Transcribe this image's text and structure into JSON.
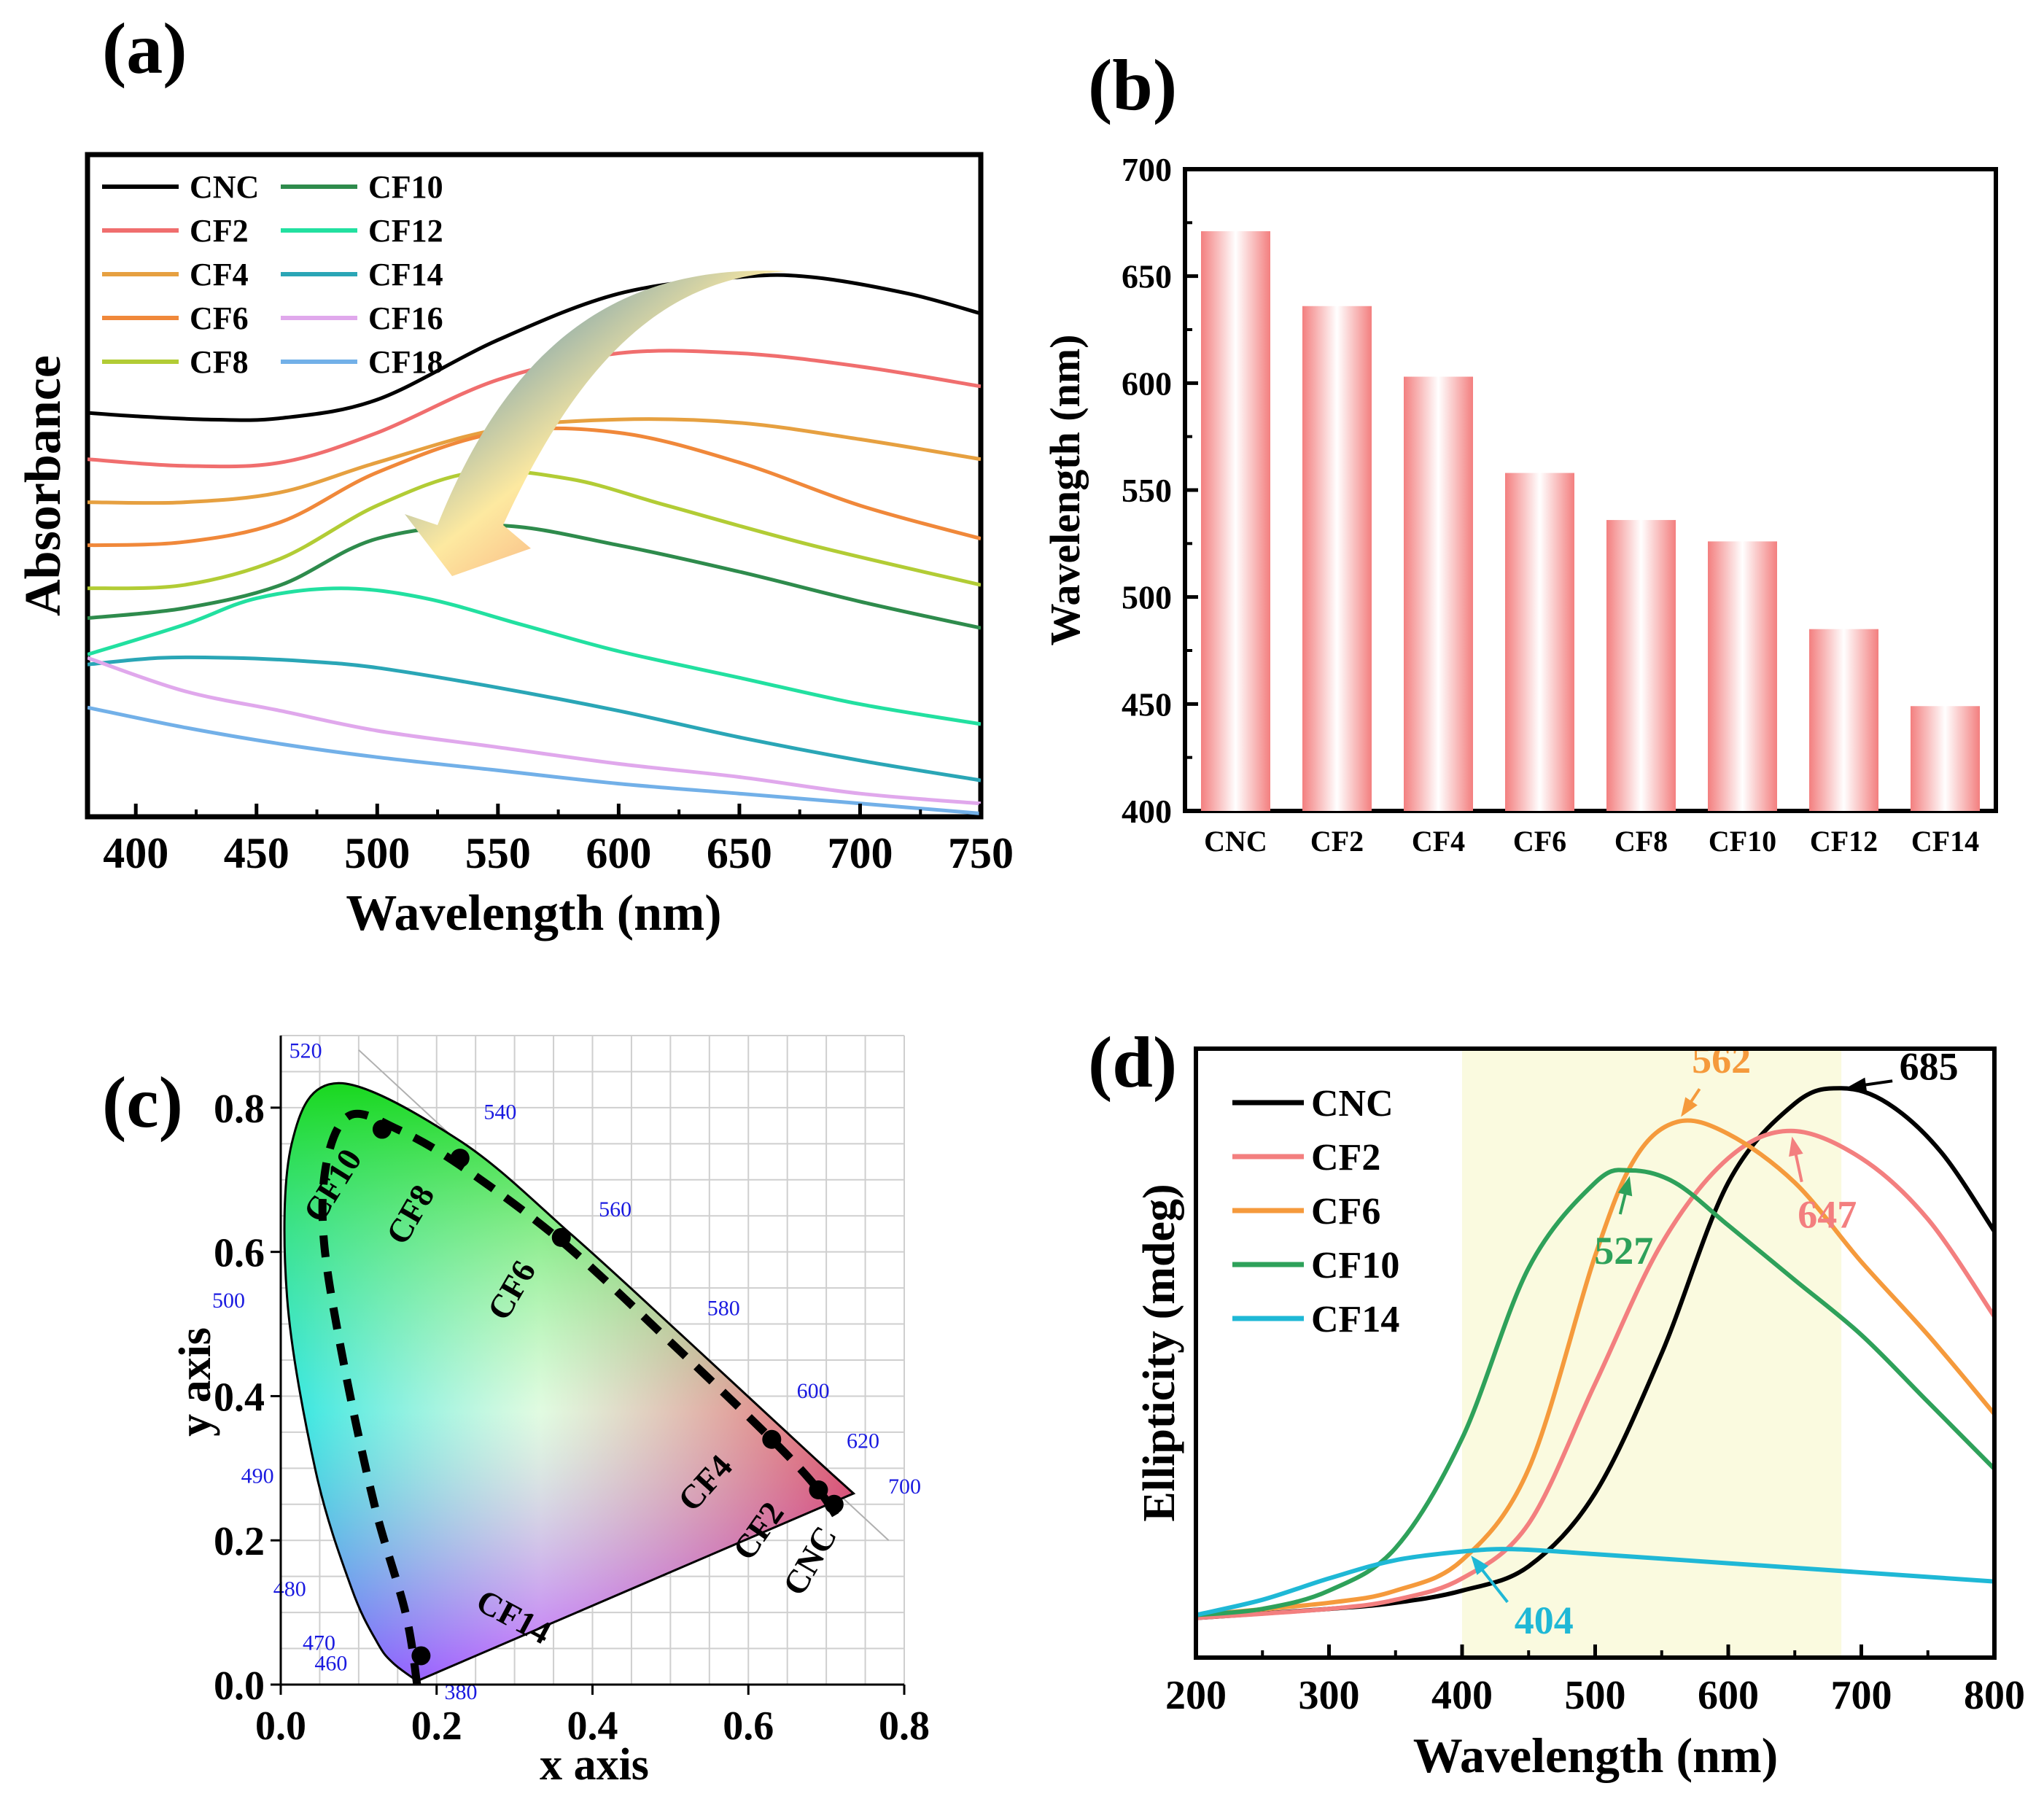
{
  "panels": {
    "a": {
      "label": "(a)",
      "chart_data": {
        "type": "line",
        "title": "",
        "xlabel": "Wavelength (nm)",
        "ylabel": "Absorbance",
        "xlim": [
          380,
          750
        ],
        "ylim": [
          0,
          1
        ],
        "xticks": [
          400,
          450,
          500,
          550,
          600,
          650,
          700,
          750
        ],
        "yticks": [],
        "legend_position": "top-left",
        "series": [
          {
            "name": "CNC",
            "color": "#000000",
            "x": [
              380,
              400,
              430,
              460,
              500,
              550,
              600,
              650,
              680,
              720,
              750
            ],
            "y": [
              0.61,
              0.605,
              0.6,
              0.602,
              0.63,
              0.72,
              0.79,
              0.815,
              0.815,
              0.79,
              0.76
            ]
          },
          {
            "name": "CF2",
            "color": "#f06e6e",
            "x": [
              380,
              420,
              460,
              500,
              550,
              600,
              650,
              700,
              750
            ],
            "y": [
              0.54,
              0.53,
              0.535,
              0.58,
              0.66,
              0.7,
              0.7,
              0.68,
              0.65
            ]
          },
          {
            "name": "CF4",
            "color": "#e6a040",
            "x": [
              380,
              420,
              460,
              500,
              550,
              600,
              650,
              700,
              750
            ],
            "y": [
              0.475,
              0.475,
              0.49,
              0.535,
              0.585,
              0.6,
              0.595,
              0.57,
              0.54
            ]
          },
          {
            "name": "CF6",
            "color": "#f0883a",
            "x": [
              380,
              420,
              460,
              500,
              550,
              600,
              650,
              700,
              750
            ],
            "y": [
              0.41,
              0.415,
              0.445,
              0.52,
              0.58,
              0.58,
              0.535,
              0.47,
              0.42
            ]
          },
          {
            "name": "CF8",
            "color": "#b2cc35",
            "x": [
              380,
              420,
              460,
              500,
              540,
              580,
              620,
              680,
              750
            ],
            "y": [
              0.345,
              0.35,
              0.39,
              0.47,
              0.52,
              0.51,
              0.47,
              0.41,
              0.35
            ]
          },
          {
            "name": "CF10",
            "color": "#2e8b4c",
            "x": [
              380,
              420,
              460,
              500,
              550,
              600,
              650,
              700,
              750
            ],
            "y": [
              0.3,
              0.315,
              0.35,
              0.42,
              0.44,
              0.41,
              0.37,
              0.325,
              0.285
            ]
          },
          {
            "name": "CF12",
            "color": "#22e0a0",
            "x": [
              380,
              420,
              450,
              485,
              520,
              560,
              600,
              650,
              700,
              750
            ],
            "y": [
              0.245,
              0.29,
              0.33,
              0.345,
              0.33,
              0.29,
              0.25,
              0.21,
              0.17,
              0.14
            ]
          },
          {
            "name": "CF14",
            "color": "#2aa6b6",
            "x": [
              380,
              410,
              440,
              470,
              500,
              550,
              600,
              650,
              700,
              750
            ],
            "y": [
              0.23,
              0.24,
              0.24,
              0.235,
              0.225,
              0.195,
              0.16,
              0.12,
              0.085,
              0.055
            ]
          },
          {
            "name": "CF16",
            "color": "#e0a8ec",
            "x": [
              380,
              420,
              460,
              500,
              550,
              600,
              650,
              700,
              750
            ],
            "y": [
              0.24,
              0.19,
              0.16,
              0.13,
              0.105,
              0.08,
              0.06,
              0.035,
              0.02
            ]
          },
          {
            "name": "CF18",
            "color": "#72b0e8",
            "x": [
              380,
              420,
              460,
              500,
              550,
              600,
              650,
              700,
              750
            ],
            "y": [
              0.165,
              0.135,
              0.11,
              0.09,
              0.07,
              0.05,
              0.035,
              0.02,
              0.005
            ]
          }
        ]
      }
    },
    "b": {
      "label": "(b)",
      "chart_data": {
        "type": "bar",
        "title": "",
        "xlabel": "",
        "ylabel": "Wavelength (nm)",
        "ylim": [
          400,
          700
        ],
        "yticks": [
          400,
          450,
          500,
          550,
          600,
          650,
          700
        ],
        "categories": [
          "CNC",
          "CF2",
          "CF4",
          "CF6",
          "CF8",
          "CF10",
          "CF12",
          "CF14"
        ],
        "values": [
          671,
          636,
          603,
          558,
          536,
          526,
          485,
          449
        ],
        "bar_color": "#f37f7f"
      }
    },
    "c": {
      "label": "(c)",
      "chart_data": {
        "type": "scatter",
        "title": "",
        "xlabel": "x axis",
        "ylabel": "y axis",
        "xlim": [
          0.0,
          0.8
        ],
        "ylim": [
          0.0,
          0.9
        ],
        "xticks": [
          0.0,
          0.2,
          0.4,
          0.6,
          0.8
        ],
        "xtick_labels": [
          "0.0",
          "0.2",
          "0.4",
          "0.6",
          "0.8"
        ],
        "yticks": [
          0.0,
          0.2,
          0.4,
          0.6,
          0.8
        ],
        "ytick_labels": [
          "0.0",
          "0.2",
          "0.4",
          "0.6",
          "0.8"
        ],
        "spectral_locus": [
          {
            "wl": 460,
            "x": 0.144,
            "y": 0.03
          },
          {
            "wl": 470,
            "x": 0.124,
            "y": 0.058
          },
          {
            "wl": 480,
            "x": 0.091,
            "y": 0.133
          },
          {
            "wl": 490,
            "x": 0.045,
            "y": 0.295
          },
          {
            "wl": 500,
            "x": 0.008,
            "y": 0.538
          },
          {
            "wl": 510,
            "x": 0.014,
            "y": 0.75
          },
          {
            "wl": 520,
            "x": 0.074,
            "y": 0.834
          },
          {
            "wl": 540,
            "x": 0.23,
            "y": 0.754
          },
          {
            "wl": 560,
            "x": 0.373,
            "y": 0.624
          },
          {
            "wl": 580,
            "x": 0.512,
            "y": 0.487
          },
          {
            "wl": 600,
            "x": 0.627,
            "y": 0.372
          },
          {
            "wl": 620,
            "x": 0.691,
            "y": 0.308
          },
          {
            "wl": 700,
            "x": 0.735,
            "y": 0.265
          }
        ],
        "locus_labels": [
          "460",
          "470",
          "480",
          "490",
          "500",
          "520",
          "540",
          "560",
          "580",
          "600",
          "620",
          "700",
          "380"
        ],
        "points": [
          {
            "name": "CNC",
            "x": 0.71,
            "y": 0.25
          },
          {
            "name": "CF2",
            "x": 0.69,
            "y": 0.27
          },
          {
            "name": "CF4",
            "x": 0.63,
            "y": 0.34
          },
          {
            "name": "CF6",
            "x": 0.36,
            "y": 0.62
          },
          {
            "name": "CF8",
            "x": 0.23,
            "y": 0.73
          },
          {
            "name": "CF10",
            "x": 0.13,
            "y": 0.77
          },
          {
            "name": "CF14",
            "x": 0.18,
            "y": 0.04
          }
        ]
      }
    },
    "d": {
      "label": "(d)",
      "chart_data": {
        "type": "line",
        "title": "",
        "xlabel": "Wavelength (nm)",
        "ylabel": "Ellipticity (mdeg)",
        "xlim": [
          200,
          800
        ],
        "ylim": [
          0,
          1
        ],
        "xticks": [
          200,
          300,
          400,
          500,
          600,
          700,
          800
        ],
        "yticks": [],
        "legend_position": "top-left",
        "highlight_band": [
          400,
          685
        ],
        "band_color": "#fafadf",
        "series": [
          {
            "name": "CNC",
            "color": "#000000",
            "x": [
              200,
              300,
              350,
              400,
              450,
              500,
              550,
              600,
              650,
              685,
              720,
              760,
              800
            ],
            "y": [
              0.065,
              0.08,
              0.09,
              0.11,
              0.15,
              0.27,
              0.5,
              0.78,
              0.91,
              0.935,
              0.91,
              0.83,
              0.7
            ]
          },
          {
            "name": "CF2",
            "color": "#f37f7f",
            "x": [
              200,
              300,
              350,
              400,
              450,
              500,
              550,
              600,
              647,
              700,
              750,
              800
            ],
            "y": [
              0.065,
              0.08,
              0.095,
              0.13,
              0.22,
              0.45,
              0.68,
              0.82,
              0.865,
              0.82,
              0.72,
              0.56
            ]
          },
          {
            "name": "CF6",
            "color": "#f59a3c",
            "x": [
              200,
              300,
              350,
              400,
              450,
              500,
              530,
              562,
              600,
              650,
              700,
              750,
              800
            ],
            "y": [
              0.07,
              0.09,
              0.11,
              0.16,
              0.31,
              0.66,
              0.82,
              0.88,
              0.86,
              0.78,
              0.65,
              0.53,
              0.4
            ]
          },
          {
            "name": "CF10",
            "color": "#2ea15a",
            "x": [
              200,
              250,
              300,
              350,
              400,
              450,
              500,
              527,
              560,
              600,
              650,
              700,
              750,
              800
            ],
            "y": [
              0.07,
              0.08,
              0.11,
              0.18,
              0.36,
              0.64,
              0.78,
              0.8,
              0.78,
              0.71,
              0.62,
              0.53,
              0.42,
              0.31
            ]
          },
          {
            "name": "CF14",
            "color": "#1fb8d6",
            "x": [
              200,
              250,
              300,
              350,
              404,
              440,
              500,
              600,
              700,
              800
            ],
            "y": [
              0.07,
              0.095,
              0.13,
              0.16,
              0.175,
              0.178,
              0.17,
              0.155,
              0.14,
              0.125
            ]
          }
        ],
        "annotations": [
          {
            "text": "685",
            "x": 685,
            "series": "CNC",
            "color": "#000000"
          },
          {
            "text": "647",
            "x": 647,
            "series": "CF2",
            "color": "#f37f7f"
          },
          {
            "text": "562",
            "x": 562,
            "series": "CF6",
            "color": "#f59a3c"
          },
          {
            "text": "527",
            "x": 527,
            "series": "CF10",
            "color": "#2ea15a"
          },
          {
            "text": "404",
            "x": 404,
            "series": "CF14",
            "color": "#1fb8d6"
          }
        ]
      }
    }
  }
}
